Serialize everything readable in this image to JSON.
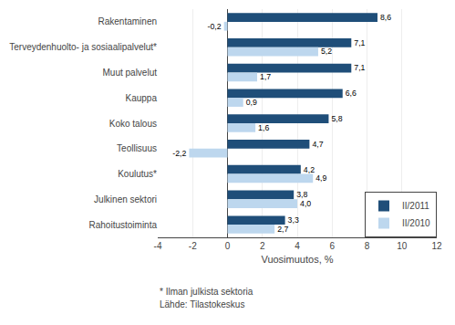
{
  "chart_data": {
    "type": "bar",
    "orientation": "horizontal",
    "categories": [
      "Rakentaminen",
      "Terveydenhuolto- ja sosiaalipalvelut*",
      "Muut palvelut",
      "Kauppa",
      "Koko talous",
      "Teollisuus",
      "Koulutus*",
      "Julkinen sektori",
      "Rahoitustoiminta"
    ],
    "series": [
      {
        "name": "II/2011",
        "color": "#1F4E79",
        "values": [
          8.6,
          7.1,
          7.1,
          6.6,
          5.8,
          4.7,
          4.2,
          3.8,
          3.3
        ],
        "value_labels": [
          "8,6",
          "7,1",
          "7,1",
          "6,6",
          "5,8",
          "4,7",
          "4,2",
          "3,8",
          "3,3"
        ]
      },
      {
        "name": "II/2010",
        "color": "#BDD7EE",
        "values": [
          -0.2,
          5.2,
          1.7,
          0.9,
          1.6,
          -2.2,
          4.9,
          4.0,
          2.7
        ],
        "value_labels": [
          "-0,2",
          "5,2",
          "1,7",
          "0,9",
          "1,6",
          "-2,2",
          "4,9",
          "4,0",
          "2,7"
        ]
      }
    ],
    "xlabel": "Vuosimuutos, %",
    "xlim": [
      -4,
      12
    ],
    "xticks": [
      -4,
      -2,
      0,
      2,
      4,
      6,
      8,
      10,
      12
    ],
    "grid": true,
    "legend": "lower right",
    "data_labels": true,
    "annotations": [
      "* Ilman julkista sektoria",
      "Lähde: Tilastokeskus"
    ]
  }
}
